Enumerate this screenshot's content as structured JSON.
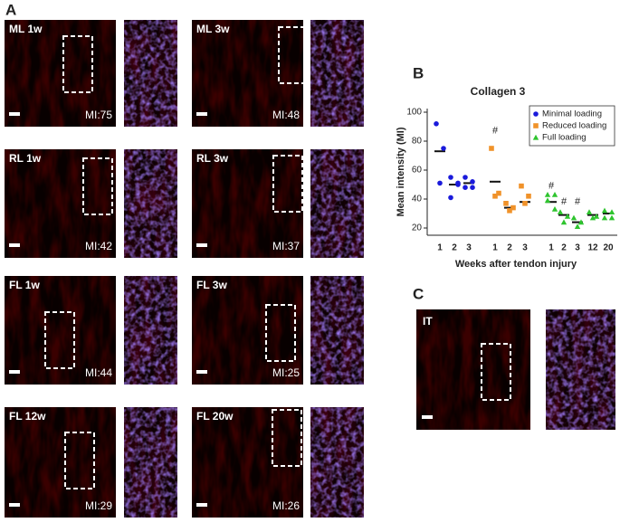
{
  "panel_labels": [
    "A",
    "B",
    "C"
  ],
  "panels_a": [
    {
      "label": "ML 1w",
      "mi": "MI:75"
    },
    {
      "label": "ML 3w",
      "mi": "MI:48"
    },
    {
      "label": "RL 1w",
      "mi": "MI:42"
    },
    {
      "label": "RL 3w",
      "mi": "MI:37"
    },
    {
      "label": "FL 1w",
      "mi": "MI:44"
    },
    {
      "label": "FL 3w",
      "mi": "MI:25"
    },
    {
      "label": "FL 12w",
      "mi": "MI:29"
    },
    {
      "label": "FL 20w",
      "mi": "MI:26"
    }
  ],
  "panel_c": {
    "label": "IT"
  },
  "chart_data": {
    "type": "scatter",
    "title": "Collagen 3",
    "x_label": "Weeks after tendon injury",
    "y_label": "Mean intensity (MI)",
    "categories": [
      "1",
      "2",
      "3",
      "1",
      "2",
      "3",
      "1",
      "2",
      "3",
      "12",
      "20"
    ],
    "ylim": [
      15,
      100
    ],
    "yticks": [
      20,
      40,
      60,
      80,
      100
    ],
    "legend": "upper right",
    "series": [
      {
        "name": "Minimal loading",
        "color": "#1a1adb",
        "marker": "circle",
        "values": [
          73,
          50,
          51,
          null,
          null,
          null,
          null,
          null,
          null,
          null,
          null
        ],
        "points": [
          [
            92,
            75,
            51
          ],
          [
            55,
            50,
            41,
            51
          ],
          [
            55,
            52,
            48,
            48
          ],
          null,
          null,
          null,
          null,
          null,
          null,
          null,
          null
        ]
      },
      {
        "name": "Reduced loading",
        "color": "#f0922a",
        "marker": "square",
        "values": [
          null,
          null,
          null,
          52,
          34,
          38,
          null,
          null,
          null,
          null,
          null
        ],
        "points": [
          null,
          null,
          null,
          [
            75,
            44,
            42
          ],
          [
            37,
            34,
            32
          ],
          [
            49,
            42,
            37
          ],
          null,
          null,
          null,
          null,
          null
        ]
      },
      {
        "name": "Full loading",
        "color": "#2ec42e",
        "marker": "triangle",
        "values": [
          null,
          null,
          null,
          null,
          null,
          null,
          38,
          29,
          24,
          29,
          30
        ],
        "points": [
          null,
          null,
          null,
          null,
          null,
          null,
          [
            43,
            43,
            39,
            33
          ],
          [
            31,
            28,
            24
          ],
          [
            27,
            24,
            21
          ],
          [
            31,
            28,
            27
          ],
          [
            32,
            31,
            27,
            27
          ]
        ]
      }
    ],
    "annotations": [
      {
        "text": "#",
        "category": 3,
        "y": 87
      },
      {
        "text": "#",
        "category": 6,
        "y": 49
      },
      {
        "text": "#",
        "category": 7,
        "y": 38
      },
      {
        "text": "#",
        "category": 8,
        "y": 38
      }
    ]
  }
}
